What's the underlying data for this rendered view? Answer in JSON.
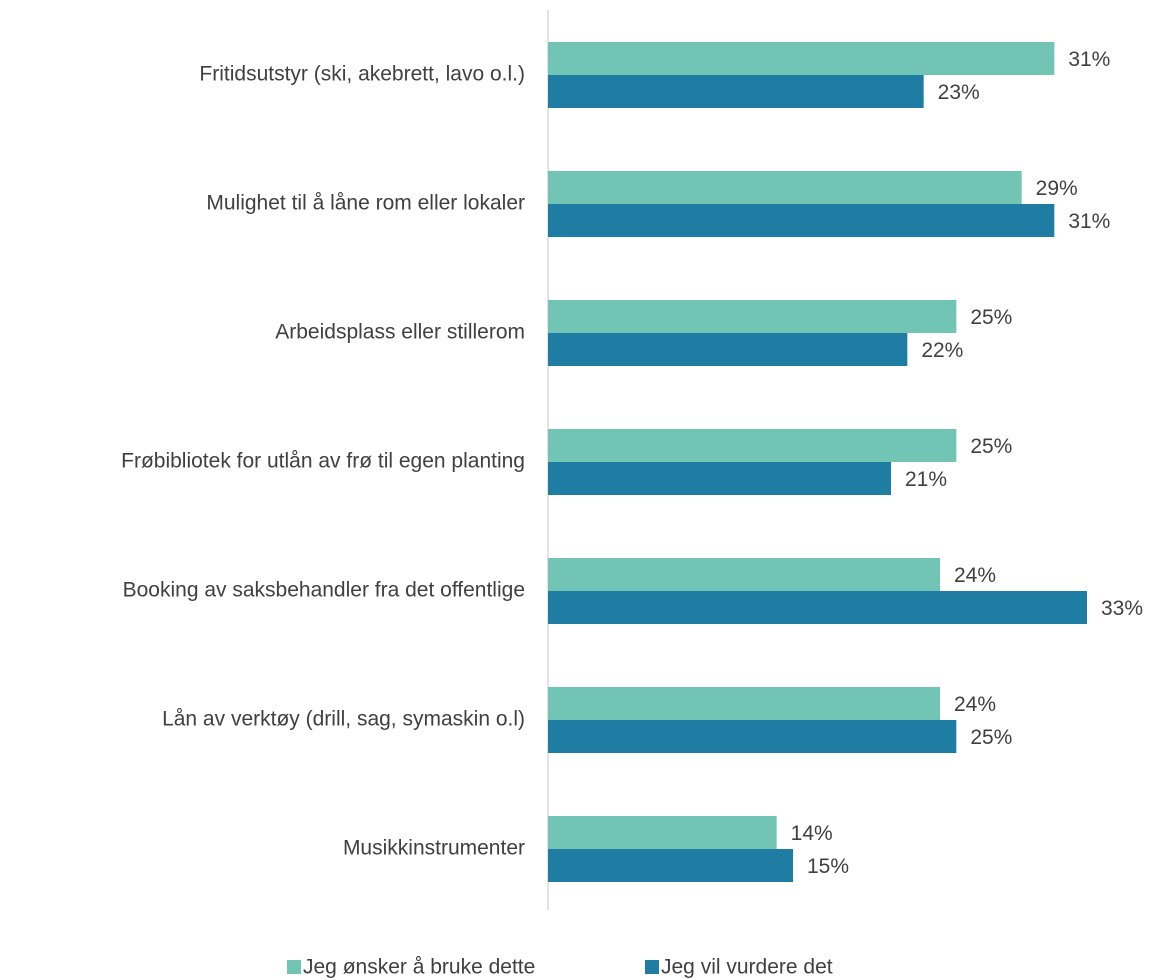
{
  "chart_data": {
    "type": "bar",
    "orientation": "horizontal",
    "categories": [
      "Fritidsutstyr (ski, akebrett, lavo o.l.)",
      "Mulighet til å låne rom eller lokaler",
      "Arbeidsplass eller stillerom",
      "Frøbibliotek for utlån av frø til egen planting",
      "Booking av saksbehandler fra det offentlige",
      "Lån av verktøy (drill, sag, symaskin o.l)",
      "Musikkinstrumenter"
    ],
    "series": [
      {
        "name": "Jeg ønsker å bruke dette",
        "color": "#72c4b4",
        "values": [
          31,
          29,
          25,
          25,
          24,
          24,
          14
        ],
        "value_labels": [
          "31%",
          "29%",
          "25%",
          "25%",
          "24%",
          "24%",
          "14%"
        ]
      },
      {
        "name": "Jeg vil vurdere det",
        "color": "#1f7ca3",
        "values": [
          23,
          31,
          22,
          21,
          33,
          25,
          15
        ],
        "value_labels": [
          "23%",
          "31%",
          "22%",
          "21%",
          "33%",
          "25%",
          "15%"
        ]
      }
    ],
    "legend": "bottom"
  }
}
